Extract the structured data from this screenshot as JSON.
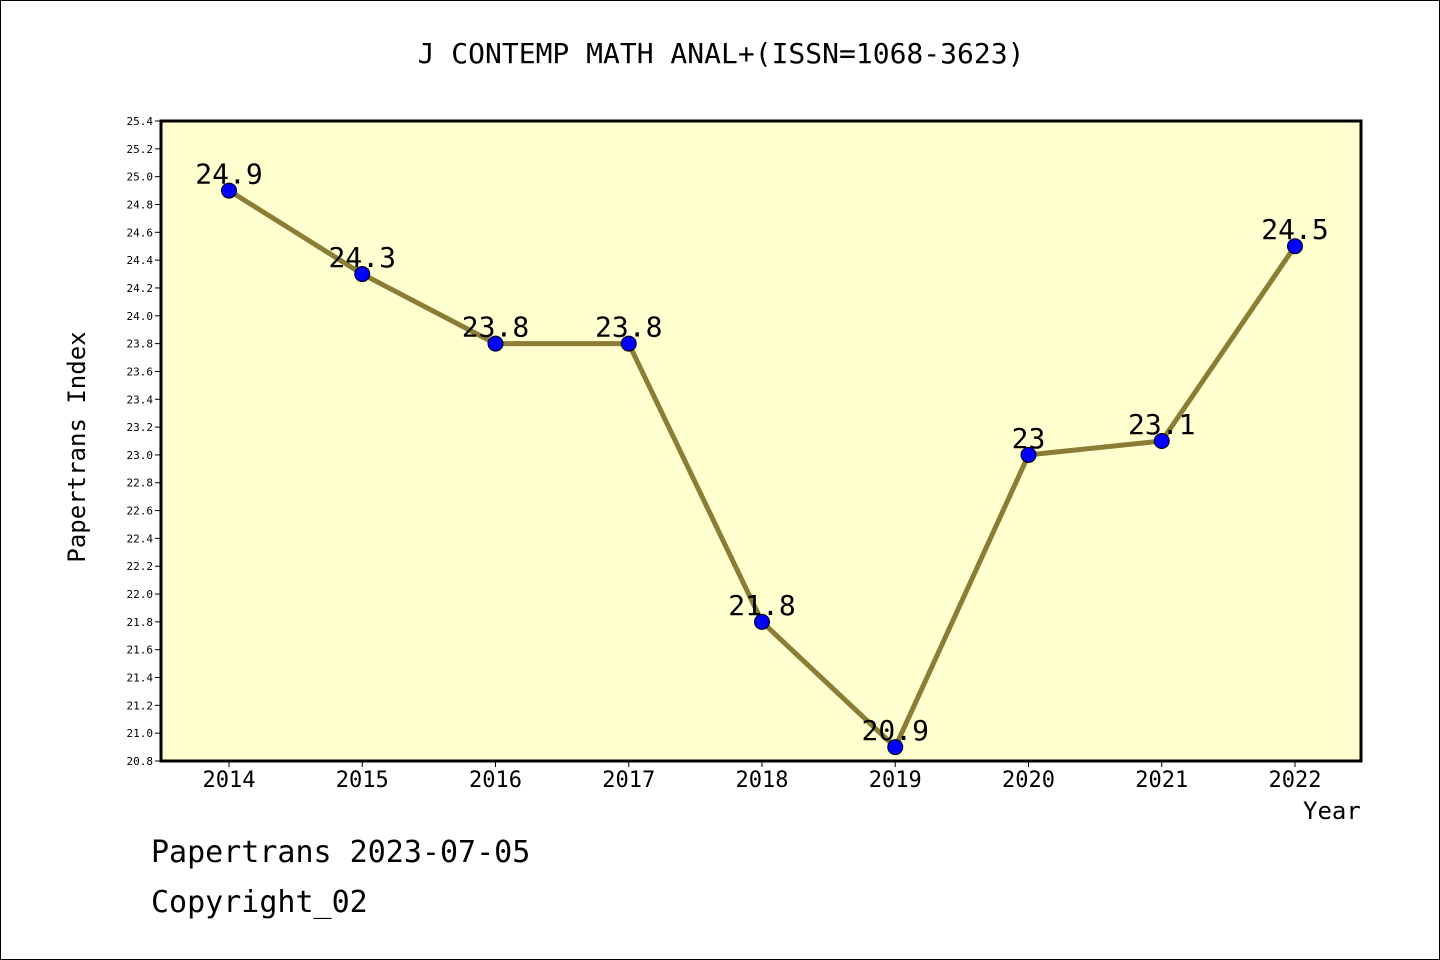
{
  "chart_data": {
    "type": "line",
    "title": "J CONTEMP MATH ANAL+(ISSN=1068-3623)",
    "xlabel": "Year",
    "ylabel": "Papertrans Index",
    "categories": [
      "2014",
      "2015",
      "2016",
      "2017",
      "2018",
      "2019",
      "2020",
      "2021",
      "2022"
    ],
    "series": [
      {
        "values": [
          24.9,
          24.3,
          23.8,
          23.8,
          21.8,
          20.9,
          23.0,
          23.1,
          24.5
        ],
        "value_labels": [
          "24.9",
          "24.3",
          "23.8",
          "23.8",
          "21.8",
          "20.9",
          "23",
          "23.1",
          "24.5"
        ]
      }
    ],
    "ylim": [
      20.8,
      25.4
    ],
    "yticks": [
      "20.8",
      "21.0",
      "21.2",
      "21.4",
      "21.6",
      "21.8",
      "22.0",
      "22.2",
      "22.4",
      "22.6",
      "22.8",
      "23.0",
      "23.2",
      "23.4",
      "23.6",
      "23.8",
      "24.0",
      "24.2",
      "24.4",
      "24.6",
      "24.8",
      "25.0",
      "25.2",
      "25.4"
    ],
    "grid": false,
    "colors": {
      "plot_background": "#ffffd0",
      "line": "#8b7d35",
      "marker": "#0000ff",
      "axis": "#000000"
    }
  },
  "footer": {
    "line1": "Papertrans 2023-07-05",
    "line2": "Copyright_02"
  }
}
